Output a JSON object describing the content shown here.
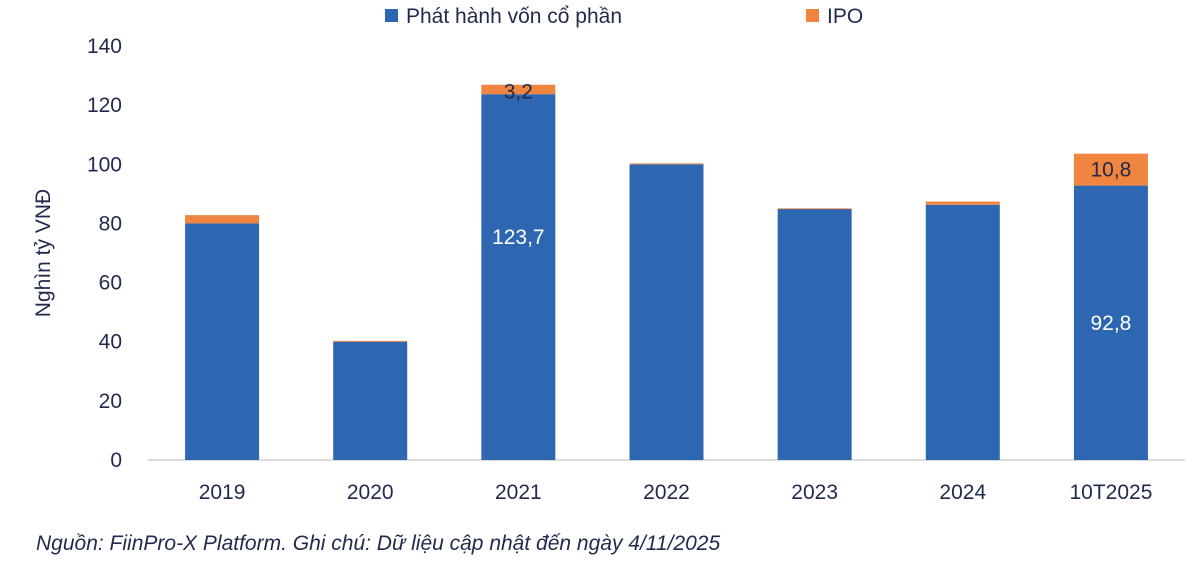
{
  "chart_data": {
    "type": "bar",
    "stacked": true,
    "title": "",
    "xlabel": "",
    "ylabel": "Nghìn tỷ VNĐ",
    "ylim": [
      0,
      140
    ],
    "yticks": [
      0,
      20,
      40,
      60,
      80,
      100,
      120,
      140
    ],
    "grid": false,
    "legend_position": "top",
    "categories": [
      "2019",
      "2020",
      "2021",
      "2022",
      "2023",
      "2024",
      "10T2025"
    ],
    "series": [
      {
        "name": "Phát hành vốn cổ phần",
        "color": "#2e67b1",
        "values": [
          80,
          40,
          123.7,
          100,
          84.9,
          86.3,
          92.8
        ],
        "labels": [
          null,
          null,
          "123,7",
          null,
          null,
          null,
          "92,8"
        ]
      },
      {
        "name": "IPO",
        "color": "#f08540",
        "values": [
          2.8,
          0.3,
          3.2,
          0.3,
          0.2,
          1.1,
          10.8
        ],
        "labels": [
          null,
          null,
          "3,2",
          null,
          null,
          null,
          "10,8"
        ]
      }
    ]
  },
  "footer": {
    "source": "Nguồn: FiinPro-X Platform. Ghi chú: Dữ liệu cập nhật đến ngày 4/11/2025"
  }
}
